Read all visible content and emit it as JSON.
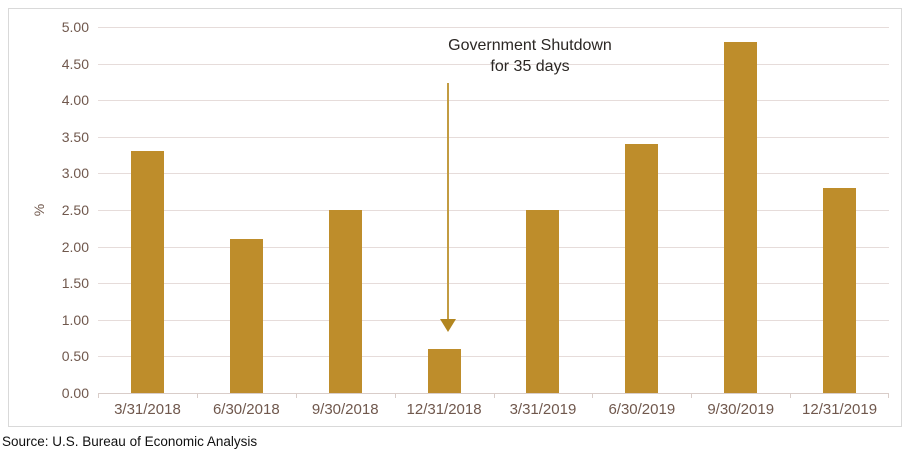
{
  "chart_data": {
    "type": "bar",
    "title": "",
    "categories": [
      "3/31/2018",
      "6/30/2018",
      "9/30/2018",
      "12/31/2018",
      "3/31/2019",
      "6/30/2019",
      "9/30/2019",
      "12/31/2019"
    ],
    "values": [
      3.3,
      2.1,
      2.5,
      0.6,
      2.5,
      3.4,
      4.8,
      2.8
    ],
    "xlabel": "",
    "ylabel": "%",
    "ylim": [
      0,
      5
    ],
    "ytick_step": 0.5,
    "ytick_labels": [
      "0.00",
      "0.50",
      "1.00",
      "1.50",
      "2.00",
      "2.50",
      "3.00",
      "3.50",
      "4.00",
      "4.50",
      "5.00"
    ],
    "grid": true,
    "legend": "none",
    "bar_color": "#be8d2b",
    "gridline_color": "#e6dcda",
    "tick_label_color": "#70584d",
    "annotation": {
      "lines": [
        "Government Shutdown",
        "for 35 days"
      ],
      "target_category": "12/31/2018",
      "arrow_color": "#b28620",
      "text_color": "#2b2724"
    }
  },
  "page": {
    "source_note": "Source: U.S. Bureau of Economic Analysis"
  }
}
